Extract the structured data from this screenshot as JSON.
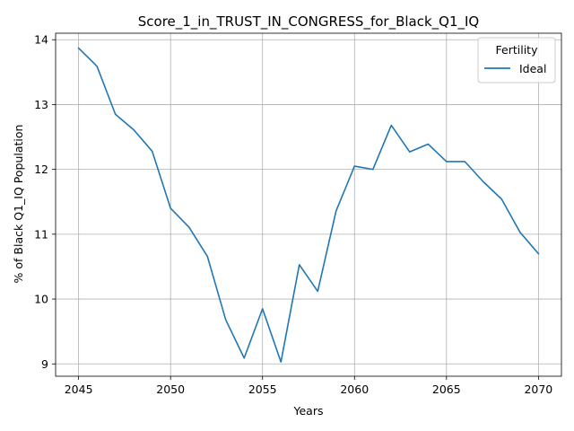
{
  "chart_data": {
    "type": "line",
    "title": "Score_1_in_TRUST_IN_CONGRESS_for_Black_Q1_IQ",
    "xlabel": "Years",
    "ylabel": "% of Black Q1_IQ Population",
    "xlim": [
      2043.75,
      2071.25
    ],
    "ylim": [
      8.81,
      14.1
    ],
    "xticks": [
      "2045",
      "2050",
      "2055",
      "2060",
      "2065",
      "2070"
    ],
    "yticks": [
      "9",
      "10",
      "11",
      "12",
      "13",
      "14"
    ],
    "grid": true,
    "legend": {
      "title": "Fertility",
      "placement": "top-right"
    },
    "series": [
      {
        "name": "Ideal",
        "color": "#1f77b4",
        "x": [
          2045,
          2046,
          2047,
          2048,
          2049,
          2050,
          2051,
          2052,
          2053,
          2054,
          2055,
          2056,
          2057,
          2058,
          2059,
          2060,
          2061,
          2062,
          2063,
          2064,
          2065,
          2066,
          2067,
          2068,
          2069,
          2070
        ],
        "y": [
          13.87,
          13.59,
          12.85,
          12.61,
          12.28,
          11.4,
          11.11,
          10.66,
          9.68,
          9.09,
          9.85,
          9.03,
          10.53,
          10.12,
          11.36,
          12.05,
          12.0,
          12.68,
          12.27,
          12.39,
          12.12,
          12.12,
          11.81,
          11.54,
          11.03,
          10.7
        ]
      }
    ]
  }
}
